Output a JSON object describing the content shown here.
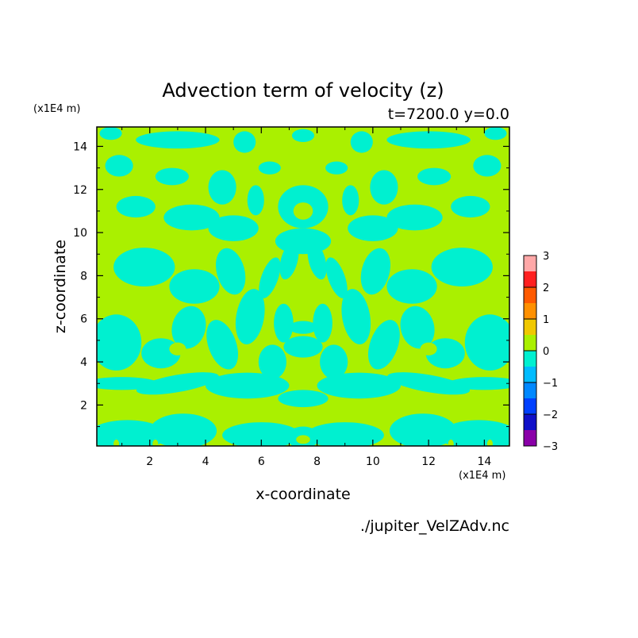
{
  "chart_data": {
    "type": "heatmap",
    "title": "Advection term of velocity (z)",
    "subtitle": "t=7200.0 y=0.0",
    "xlabel": "x-coordinate",
    "ylabel": "z-coordinate",
    "x_unit": "(x1E4 m)",
    "y_unit": "(x1E4 m)",
    "xlim": [
      0.1,
      14.9
    ],
    "ylim": [
      0.1,
      14.9
    ],
    "x_ticks": [
      2,
      4,
      6,
      8,
      10,
      12,
      14
    ],
    "y_ticks": [
      2,
      4,
      6,
      8,
      10,
      12,
      14
    ],
    "file_label": "./jupiter_VelZAdv.nc",
    "colorbar": {
      "levels": [
        -3,
        -2.5,
        -2,
        -1.5,
        -1,
        -0.5,
        0,
        0.5,
        1,
        1.5,
        2,
        2.5,
        3
      ],
      "tick_labels": [
        "3",
        "2",
        "1",
        "0",
        "−1",
        "−2",
        "−3"
      ],
      "tick_values": [
        3,
        2,
        1,
        0,
        -1,
        -2,
        -3
      ],
      "colors": [
        "#8a00a8",
        "#1010c8",
        "#0040ff",
        "#0088ff",
        "#00bcff",
        "#00f0d0",
        "#aaf000",
        "#f0c800",
        "#ff9000",
        "#ff5a00",
        "#ff2020",
        "#ffa8a8"
      ]
    },
    "field_colors": {
      "positive_small": "#aaf000",
      "negative_small": "#00f0d0"
    }
  }
}
